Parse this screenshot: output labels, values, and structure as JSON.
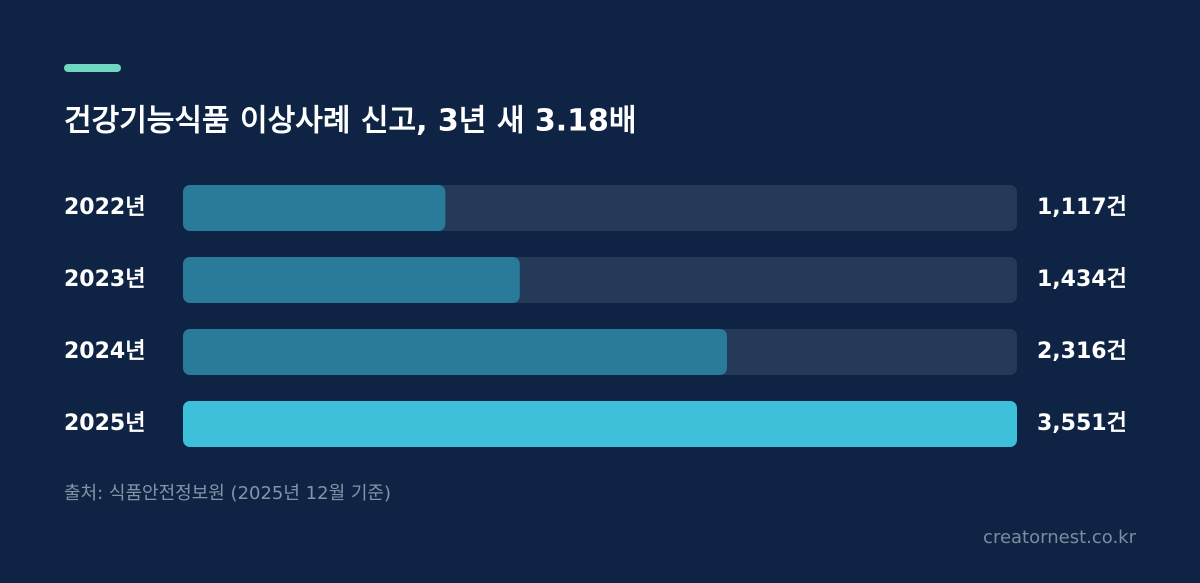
{
  "chart_data": {
    "type": "bar",
    "orientation": "horizontal",
    "title": "건강기능식품 이상사례 신고, 3년 새 3.18배",
    "categories": [
      "2022년",
      "2023년",
      "2024년",
      "2025년"
    ],
    "values": [
      1117,
      1434,
      2316,
      3551
    ],
    "value_labels": [
      "1,117건",
      "1,434건",
      "2,316건",
      "3,551건"
    ],
    "colors": [
      "#2a7b99",
      "#2a7b99",
      "#2a7b99",
      "#3ebfd9"
    ],
    "xlim": [
      0,
      3551
    ],
    "source": "출처: 식품안전정보원 (2025년 12월 기준)",
    "watermark": "creatornest.co.kr"
  }
}
